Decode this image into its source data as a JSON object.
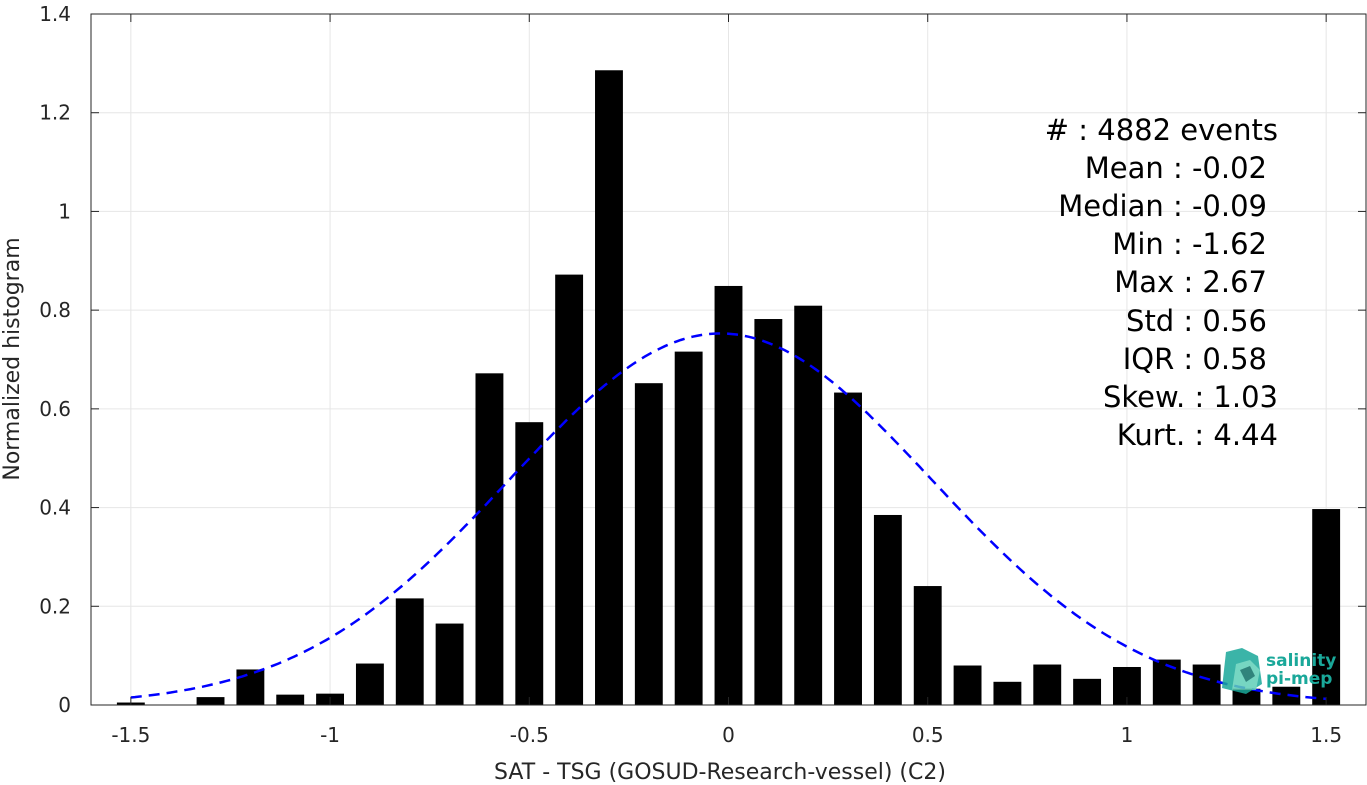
{
  "chart_data": {
    "type": "bar",
    "xlabel": "SAT - TSG (GOSUD-Research-vessel) (C2)",
    "ylabel": "Normalized histogram",
    "xlim": [
      -1.6,
      1.6
    ],
    "ylim": [
      0,
      1.4
    ],
    "xticks": [
      -1.5,
      -1,
      -0.5,
      0,
      0.5,
      1,
      1.5
    ],
    "xtick_labels": [
      "-1.5",
      "-1",
      "-0.5",
      "0",
      "0.5",
      "1",
      "1.5"
    ],
    "yticks": [
      0,
      0.2,
      0.4,
      0.6,
      0.8,
      1,
      1.2,
      1.4
    ],
    "ytick_labels": [
      "0",
      "0.2",
      "0.4",
      "0.6",
      "0.8",
      "1",
      "1.2",
      "1.4"
    ],
    "grid": true,
    "bar_width": 0.07,
    "bar_color": "#000000",
    "x": [
      -1.5,
      -1.4,
      -1.3,
      -1.2,
      -1.1,
      -1.0,
      -0.9,
      -0.8,
      -0.7,
      -0.6,
      -0.5,
      -0.4,
      -0.3,
      -0.2,
      -0.1,
      0.0,
      0.1,
      0.2,
      0.3,
      0.4,
      0.5,
      0.6,
      0.7,
      0.8,
      0.9,
      1.0,
      1.1,
      1.2,
      1.3,
      1.4,
      1.5
    ],
    "values": [
      0.005,
      0.0,
      0.016,
      0.072,
      0.021,
      0.023,
      0.084,
      0.216,
      0.165,
      0.672,
      0.573,
      0.872,
      1.286,
      0.652,
      0.716,
      0.849,
      0.782,
      0.809,
      0.633,
      0.385,
      0.241,
      0.08,
      0.047,
      0.082,
      0.053,
      0.077,
      0.092,
      0.082,
      0.033,
      0.037,
      0.397
    ],
    "fit_curve": {
      "style": "dashed",
      "color": "#0000ff",
      "mean": -0.02,
      "std": 0.53,
      "x_range": [
        -1.5,
        1.5
      ]
    },
    "stats": {
      "count": "#  : 4882 events",
      "mean": "Mean : -0.02",
      "median": "Median : -0.09",
      "min": "Min : -1.62",
      "max": "Max : 2.67",
      "std": "Std : 0.56",
      "iqr": "IQR : 0.58",
      "skew": "Skew. : 1.03",
      "kurt": "Kurt. : 4.44"
    }
  },
  "logo": {
    "line1": "salinity",
    "line2": "pi-mep",
    "color": "#1aa89a"
  }
}
